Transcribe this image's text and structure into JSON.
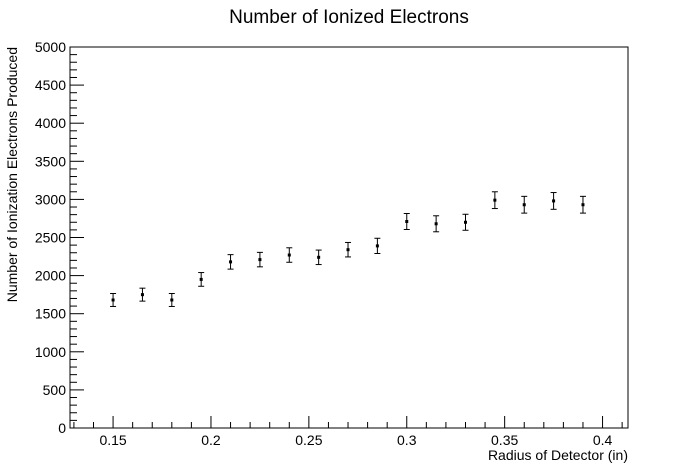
{
  "chart_data": {
    "type": "scatter",
    "title": "Number of Ionized Electrons",
    "xlabel": "Radius of Detector (in)",
    "ylabel": "Number of Ionization Electrons Produced",
    "xlim": [
      0.128,
      0.413
    ],
    "ylim": [
      0,
      5000
    ],
    "x_ticks": [
      0.15,
      0.2,
      0.25,
      0.3,
      0.35,
      0.4
    ],
    "x_tick_labels": [
      "0.15",
      "0.2",
      "0.25",
      "0.3",
      "0.35",
      "0.4"
    ],
    "y_ticks": [
      0,
      500,
      1000,
      1500,
      2000,
      2500,
      3000,
      3500,
      4000,
      4500,
      5000
    ],
    "y_tick_labels": [
      "0",
      "500",
      "1000",
      "1500",
      "2000",
      "2500",
      "3000",
      "3500",
      "4000",
      "4500",
      "5000"
    ],
    "grid": false,
    "legend": "none",
    "marker_color": "#000000",
    "series": [
      {
        "x": [
          0.15,
          0.165,
          0.18,
          0.195,
          0.21,
          0.225,
          0.24,
          0.255,
          0.27,
          0.285,
          0.3,
          0.315,
          0.33,
          0.345,
          0.36,
          0.375,
          0.39
        ],
        "y": [
          1680,
          1750,
          1680,
          1950,
          2180,
          2210,
          2270,
          2240,
          2340,
          2390,
          2710,
          2680,
          2700,
          2990,
          2930,
          2980,
          2930
        ],
        "yerr": [
          85,
          85,
          85,
          90,
          95,
          95,
          95,
          95,
          95,
          100,
          105,
          105,
          105,
          110,
          110,
          110,
          110
        ]
      }
    ]
  }
}
